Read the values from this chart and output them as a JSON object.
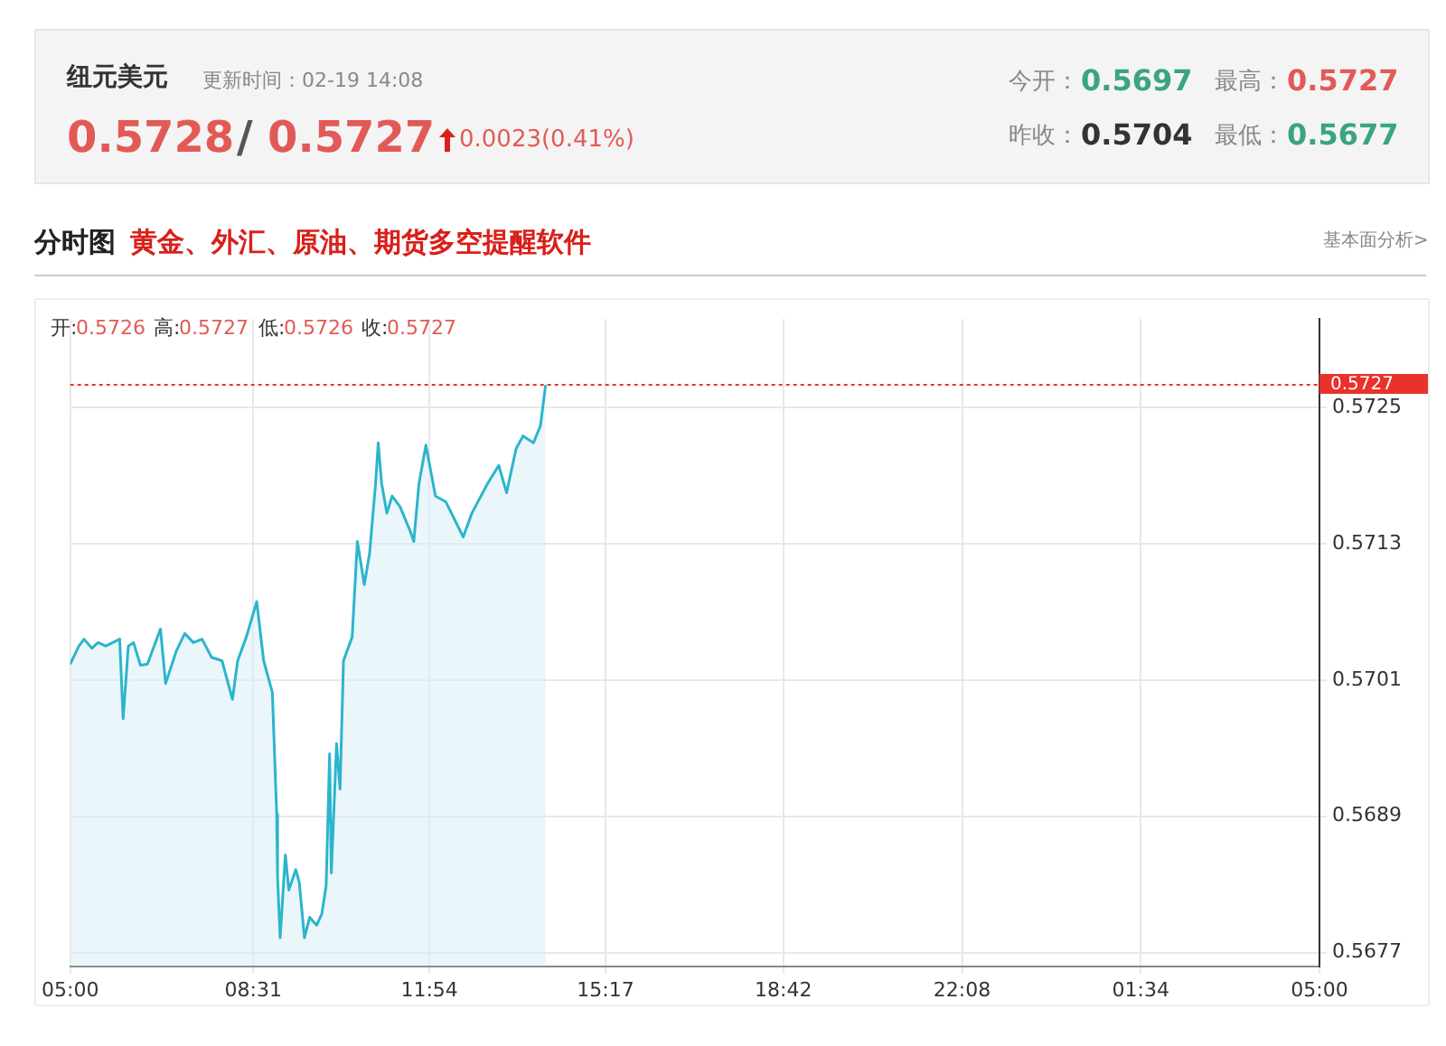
{
  "chart_data": {
    "type": "area",
    "title": "纽元美元",
    "subtitle": "分时图",
    "annotations": [
      "更新时间：02-19 14:08",
      "0.5728",
      "/",
      "0.5727",
      "0.0023(0.41%)",
      "今开：",
      "0.5697",
      "最高：",
      "0.5727",
      "昨收：",
      "0.5704",
      "最低：",
      "0.5677",
      "黄金、外汇、原油、期货多空提醒软件",
      "基本面分析>",
      "开:",
      "0.5726",
      "高:",
      "0.5727",
      "低:",
      "0.5726",
      "收:",
      "0.5727"
    ],
    "x": [
      "--02-19T05:00",
      "--02-19T05:10",
      "--02-19T05:16",
      "--02-19T05:25",
      "--02-19T05:32",
      "--02-19T05:41",
      "--02-19T05:49",
      "--02-19T05:57",
      "--02-19T06:01",
      "--02-19T06:07",
      "--02-19T06:13",
      "--02-19T06:21",
      "--02-19T06:29",
      "--02-19T06:44",
      "--02-19T06:50",
      "--02-19T07:02",
      "--02-19T07:12",
      "--02-19T07:22",
      "--02-19T07:32",
      "--02-19T07:43",
      "--02-19T07:55",
      "--02-19T08:07",
      "--02-19T08:13",
      "--02-19T08:23",
      "--02-19T08:35",
      "--02-19T08:43",
      "--02-19T08:53",
      "--02-19T08:58",
      "--02-19T08:59",
      "--02-19T09:02",
      "--02-19T09:08",
      "--02-19T09:12",
      "--02-19T09:20",
      "--02-19T09:24",
      "--02-19T09:30",
      "--02-19T09:36",
      "--02-19T09:44",
      "--02-19T09:50",
      "--02-19T09:55",
      "--02-19T09:59",
      "--02-19T10:01",
      "--02-19T10:07",
      "--02-19T10:11",
      "--02-19T10:15",
      "--02-19T10:25",
      "--02-19T10:31",
      "--02-19T10:39",
      "--02-19T10:45",
      "--02-19T10:52",
      "--02-19T10:55",
      "--02-19T10:59",
      "--02-19T11:05",
      "--02-19T11:11",
      "--02-19T11:20",
      "--02-19T11:32",
      "--02-19T11:36",
      "--02-19T11:42",
      "--02-19T11:50",
      "--02-19T12:01",
      "--02-19T12:13",
      "--02-19T12:33",
      "--02-19T12:43",
      "--02-19T13:01",
      "--02-19T13:14",
      "--02-19T13:23",
      "--02-19T13:34",
      "--02-19T13:42",
      "--02-19T13:54",
      "--02-19T14:02",
      "--02-19T14:08"
    ],
    "series": [
      {
        "color": "#2bb5cc",
        "values": [
          0.57024,
          0.5704,
          0.57046,
          0.57038,
          0.57043,
          0.5704,
          0.57043,
          0.57046,
          0.56976,
          0.5704,
          0.57043,
          0.57023,
          0.57024,
          0.57055,
          0.57007,
          0.57035,
          0.57051,
          0.57043,
          0.57046,
          0.5703,
          0.57027,
          0.56993,
          0.57027,
          0.57048,
          0.57079,
          0.57027,
          0.56999,
          0.56892,
          0.56836,
          0.56783,
          0.56856,
          0.56825,
          0.56843,
          0.56832,
          0.56783,
          0.56801,
          0.56794,
          0.56804,
          0.56829,
          0.56945,
          0.5684,
          0.56954,
          0.56914,
          0.57027,
          0.57048,
          0.57132,
          0.57094,
          0.57121,
          0.57183,
          0.57219,
          0.57183,
          0.57157,
          0.57172,
          0.57163,
          0.57141,
          0.57132,
          0.57183,
          0.57217,
          0.57172,
          0.57167,
          0.57136,
          0.57157,
          0.57183,
          0.57199,
          0.57175,
          0.57214,
          0.57225,
          0.57219,
          0.57234,
          0.5727
        ]
      }
    ],
    "xlim": [
      "--02-19T05:00",
      "--02-20T05:00"
    ],
    "xticks": [
      {
        "value": "--02-19T05:00",
        "label": "05:00"
      },
      {
        "value": "--02-19T08:31",
        "label": "08:31"
      },
      {
        "value": "--02-19T11:54",
        "label": "11:54"
      },
      {
        "value": "--02-19T15:17",
        "label": "15:17"
      },
      {
        "value": "--02-19T18:42",
        "label": "18:42"
      },
      {
        "value": "--02-19T22:08",
        "label": "22:08"
      },
      {
        "value": "--02-20T01:34",
        "label": "01:34"
      },
      {
        "value": "--02-20T05:00",
        "label": "05:00"
      }
    ],
    "ylim": [
      0.56758,
      0.57328
    ],
    "yticks": [
      0.5677,
      0.5689,
      0.5701,
      0.5713,
      0.5725
    ],
    "ref_lines": [
      {
        "axis": "y",
        "value": 0.5727,
        "label": "0.5727",
        "color": "#e8322b",
        "line_style": "dotted"
      }
    ],
    "grid": true,
    "legend": false,
    "marker": "none",
    "line_style": "solid"
  }
}
